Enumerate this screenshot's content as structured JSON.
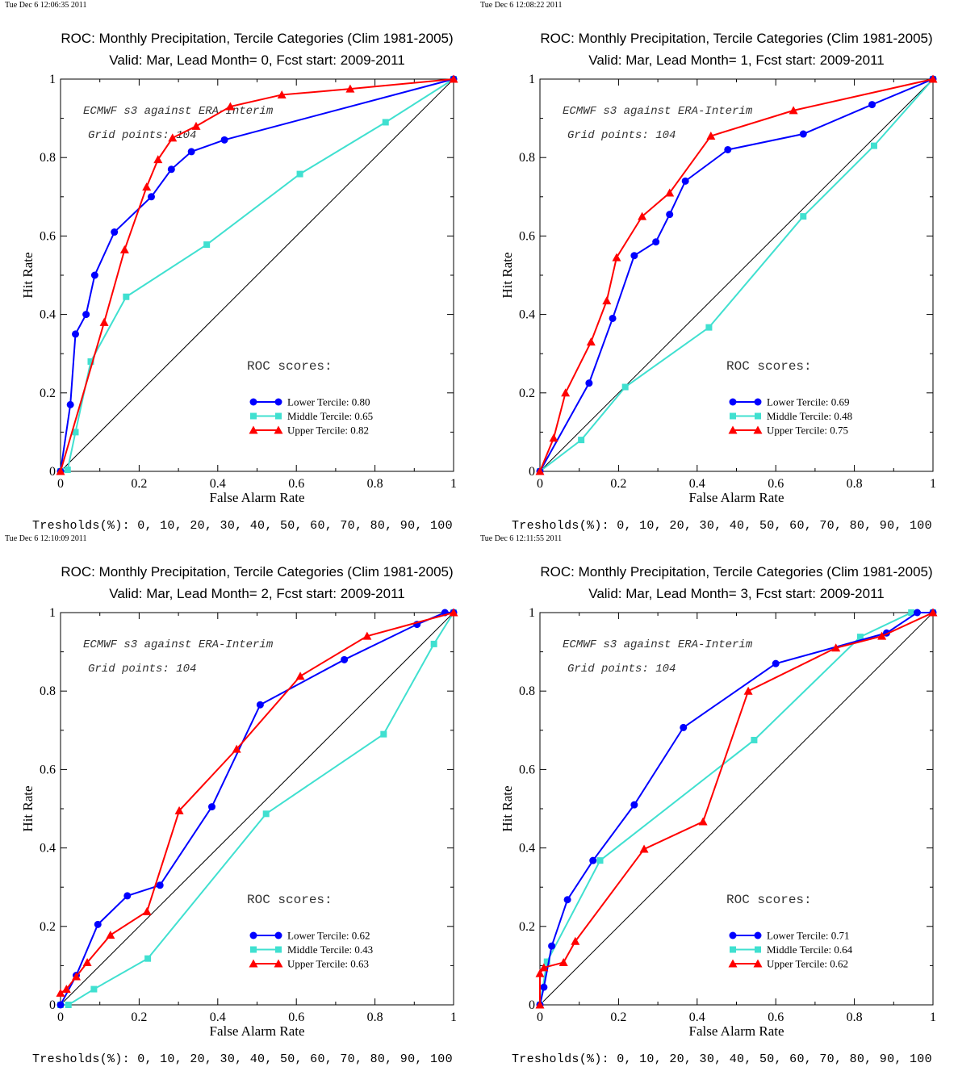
{
  "thresholds_label": "Tresholds(%): 0, 10, 20, 30, 40, 50, 60, 70, 80, 90, 100",
  "colors": {
    "lower": "#0000ff",
    "middle": "#40e0d0",
    "upper": "#ff0000",
    "diagonal": "#000000"
  },
  "chart_data": [
    {
      "type": "line",
      "timestamp": "Tue Dec  6 12:06:35 2011",
      "title": "ROC: Monthly Precipitation, Tercile Categories (Clim 1981-2005)",
      "subtitle": "Valid: Mar, Lead Month= 0, Fcst start: 2009-2011",
      "xlabel": "False Alarm Rate",
      "ylabel": "Hit Rate",
      "xlim": [
        0,
        1
      ],
      "ylim": [
        0,
        1
      ],
      "xticks": [
        "0",
        "0.2",
        "0.4",
        "0.6",
        "0.8",
        "1"
      ],
      "yticks": [
        "0",
        "0.2",
        "0.4",
        "0.6",
        "0.8",
        "1"
      ],
      "annotation_model": "ECMWF s3 against ERA-Interim",
      "annotation_grid": "Grid points:  104",
      "roc_heading": "ROC scores:",
      "legend_position": "lower-right",
      "series": [
        {
          "name": "Lower Tercile: 0.80",
          "color": "lower",
          "marker": "circle",
          "x": [
            0,
            0.025,
            0.038,
            0.065,
            0.087,
            0.137,
            0.231,
            0.282,
            0.333,
            0.417,
            1
          ],
          "y": [
            0,
            0.17,
            0.35,
            0.4,
            0.5,
            0.61,
            0.7,
            0.77,
            0.815,
            0.845,
            1
          ]
        },
        {
          "name": "Middle Tercile: 0.65",
          "color": "middle",
          "marker": "square",
          "x": [
            0,
            0.018,
            0.038,
            0.077,
            0.167,
            0.372,
            0.609,
            0.827,
            1
          ],
          "y": [
            0,
            0.004,
            0.1,
            0.28,
            0.445,
            0.578,
            0.758,
            0.89,
            1
          ]
        },
        {
          "name": "Upper Tercile: 0.82",
          "color": "upper",
          "marker": "triangle",
          "x": [
            0,
            0.111,
            0.163,
            0.219,
            0.248,
            0.285,
            0.345,
            0.432,
            0.563,
            0.737,
            1
          ],
          "y": [
            0,
            0.38,
            0.565,
            0.725,
            0.795,
            0.85,
            0.88,
            0.93,
            0.96,
            0.975,
            1
          ]
        }
      ]
    },
    {
      "type": "line",
      "timestamp": "Tue Dec  6 12:08:22 2011",
      "title": "ROC: Monthly Precipitation, Tercile Categories (Clim 1981-2005)",
      "subtitle": "Valid: Mar, Lead Month= 1, Fcst start: 2009-2011",
      "xlabel": "False Alarm Rate",
      "ylabel": "Hit Rate",
      "xlim": [
        0,
        1
      ],
      "ylim": [
        0,
        1
      ],
      "xticks": [
        "0",
        "0.2",
        "0.4",
        "0.6",
        "0.8",
        "1"
      ],
      "yticks": [
        "0",
        "0.2",
        "0.4",
        "0.6",
        "0.8",
        "1"
      ],
      "annotation_model": "ECMWF s3 against ERA-Interim",
      "annotation_grid": "Grid points:  104",
      "roc_heading": "ROC scores:",
      "legend_position": "lower-right",
      "series": [
        {
          "name": "Lower Tercile: 0.69",
          "color": "lower",
          "marker": "circle",
          "x": [
            0,
            0.125,
            0.185,
            0.24,
            0.295,
            0.33,
            0.37,
            0.478,
            0.67,
            0.845,
            1
          ],
          "y": [
            0,
            0.225,
            0.39,
            0.55,
            0.585,
            0.655,
            0.74,
            0.82,
            0.86,
            0.935,
            1
          ]
        },
        {
          "name": "Middle Tercile: 0.48",
          "color": "middle",
          "marker": "square",
          "x": [
            0,
            0.105,
            0.217,
            0.43,
            0.67,
            0.85,
            1
          ],
          "y": [
            0,
            0.08,
            0.215,
            0.367,
            0.65,
            0.83,
            1
          ]
        },
        {
          "name": "Upper Tercile: 0.75",
          "color": "upper",
          "marker": "triangle",
          "x": [
            0,
            0.035,
            0.065,
            0.13,
            0.17,
            0.195,
            0.26,
            0.33,
            0.435,
            0.645,
            1
          ],
          "y": [
            0,
            0.085,
            0.2,
            0.33,
            0.435,
            0.545,
            0.65,
            0.71,
            0.855,
            0.92,
            1
          ]
        }
      ]
    },
    {
      "type": "line",
      "timestamp": "Tue Dec  6 12:10:09 2011",
      "title": "ROC: Monthly Precipitation, Tercile Categories (Clim 1981-2005)",
      "subtitle": "Valid: Mar, Lead Month= 2, Fcst start: 2009-2011",
      "xlabel": "False Alarm Rate",
      "ylabel": "Hit Rate",
      "xlim": [
        0,
        1
      ],
      "ylim": [
        0,
        1
      ],
      "xticks": [
        "0",
        "0.2",
        "0.4",
        "0.6",
        "0.8",
        "1"
      ],
      "yticks": [
        "0",
        "0.2",
        "0.4",
        "0.6",
        "0.8",
        "1"
      ],
      "annotation_model": "ECMWF s3 against ERA-Interim",
      "annotation_grid": "Grid points:  104",
      "roc_heading": "ROC scores:",
      "legend_position": "lower-right",
      "series": [
        {
          "name": "Lower Tercile: 0.62",
          "color": "lower",
          "marker": "circle",
          "x": [
            0,
            0.04,
            0.095,
            0.17,
            0.253,
            0.385,
            0.508,
            0.722,
            0.907,
            0.978,
            1
          ],
          "y": [
            0,
            0.075,
            0.205,
            0.278,
            0.305,
            0.505,
            0.765,
            0.88,
            0.97,
            1.0,
            1
          ]
        },
        {
          "name": "Middle Tercile: 0.43",
          "color": "middle",
          "marker": "square",
          "x": [
            0,
            0.02,
            0.085,
            0.222,
            0.523,
            0.822,
            0.95,
            1
          ],
          "y": [
            0,
            0.0,
            0.04,
            0.118,
            0.487,
            0.69,
            0.92,
            1
          ]
        },
        {
          "name": "Upper Tercile: 0.63",
          "color": "upper",
          "marker": "triangle",
          "x": [
            0,
            0.015,
            0.04,
            0.068,
            0.127,
            0.22,
            0.302,
            0.448,
            0.61,
            0.78,
            1
          ],
          "y": [
            0.03,
            0.04,
            0.072,
            0.108,
            0.178,
            0.238,
            0.495,
            0.652,
            0.838,
            0.94,
            1
          ]
        }
      ]
    },
    {
      "type": "line",
      "timestamp": "Tue Dec  6 12:11:55 2011",
      "title": "ROC: Monthly Precipitation, Tercile Categories (Clim 1981-2005)",
      "subtitle": "Valid: Mar, Lead Month= 3, Fcst start: 2009-2011",
      "xlabel": "False Alarm Rate",
      "ylabel": "Hit Rate",
      "xlim": [
        0,
        1
      ],
      "ylim": [
        0,
        1
      ],
      "xticks": [
        "0",
        "0.2",
        "0.4",
        "0.6",
        "0.8",
        "1"
      ],
      "yticks": [
        "0",
        "0.2",
        "0.4",
        "0.6",
        "0.8",
        "1"
      ],
      "annotation_model": "ECMWF s3 against ERA-Interim",
      "annotation_grid": "Grid points:  104",
      "roc_heading": "ROC scores:",
      "legend_position": "lower-right",
      "series": [
        {
          "name": "Lower Tercile: 0.71",
          "color": "lower",
          "marker": "circle",
          "x": [
            0,
            0.01,
            0.03,
            0.07,
            0.135,
            0.24,
            0.365,
            0.6,
            0.882,
            0.96,
            1
          ],
          "y": [
            0,
            0.045,
            0.15,
            0.268,
            0.368,
            0.51,
            0.707,
            0.87,
            0.948,
            1.0,
            1
          ]
        },
        {
          "name": "Middle Tercile: 0.64",
          "color": "middle",
          "marker": "square",
          "x": [
            0,
            0.018,
            0.153,
            0.545,
            0.815,
            0.945,
            1
          ],
          "y": [
            0,
            0.11,
            0.368,
            0.675,
            0.938,
            1.0,
            1
          ]
        },
        {
          "name": "Upper Tercile: 0.62",
          "color": "upper",
          "marker": "triangle",
          "x": [
            0,
            0.0,
            0.01,
            0.06,
            0.09,
            0.265,
            0.415,
            0.53,
            0.753,
            0.87,
            1
          ],
          "y": [
            0.0,
            0.08,
            0.095,
            0.108,
            0.162,
            0.397,
            0.467,
            0.8,
            0.91,
            0.94,
            1
          ]
        }
      ]
    }
  ]
}
